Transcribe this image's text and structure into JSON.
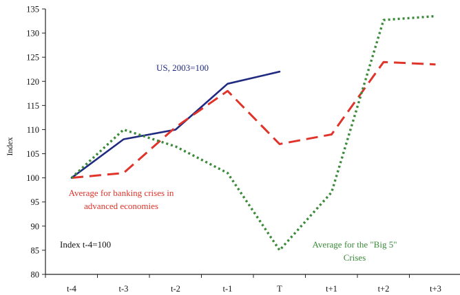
{
  "chart_data": {
    "type": "line",
    "title": "",
    "xlabel": "",
    "ylabel": "Index",
    "categories": [
      "t-4",
      "t-3",
      "t-2",
      "t-1",
      "T",
      "t+1",
      "t+2",
      "t+3"
    ],
    "ylim": [
      80,
      135
    ],
    "yticks": [
      80,
      85,
      90,
      95,
      100,
      105,
      110,
      115,
      120,
      125,
      130,
      135
    ],
    "grid": false,
    "legend": "none (series labelled inline)",
    "series": [
      {
        "name": "US, 2003=100",
        "color": "#1f2a80",
        "style": "solid",
        "values": [
          100,
          108,
          110,
          119.5,
          122,
          null,
          null,
          null
        ]
      },
      {
        "name": "Average for banking crises in advanced economies",
        "color": "#e0332a",
        "style": "dashed",
        "values": [
          100,
          101,
          110.5,
          118,
          107,
          109,
          124,
          123.5
        ]
      },
      {
        "name": "Average for the \"Big 5\" Crises",
        "color": "#3a8a3a",
        "style": "dotted",
        "values": [
          100,
          110,
          106.5,
          101,
          85,
          97,
          132.7,
          133.5
        ]
      }
    ],
    "annotations": [
      {
        "id": "us",
        "lines": [
          "US, 2003=100"
        ],
        "color": "#1f2a80"
      },
      {
        "id": "banking",
        "lines": [
          "Average for banking crises in",
          "advanced economies"
        ],
        "color": "#e0332a"
      },
      {
        "id": "big5",
        "lines": [
          "Average for the \"Big 5\"",
          "Crises"
        ],
        "color": "#3a8a3a"
      },
      {
        "id": "index-note",
        "lines": [
          "Index t-4=100"
        ],
        "color": "#111111"
      }
    ]
  }
}
